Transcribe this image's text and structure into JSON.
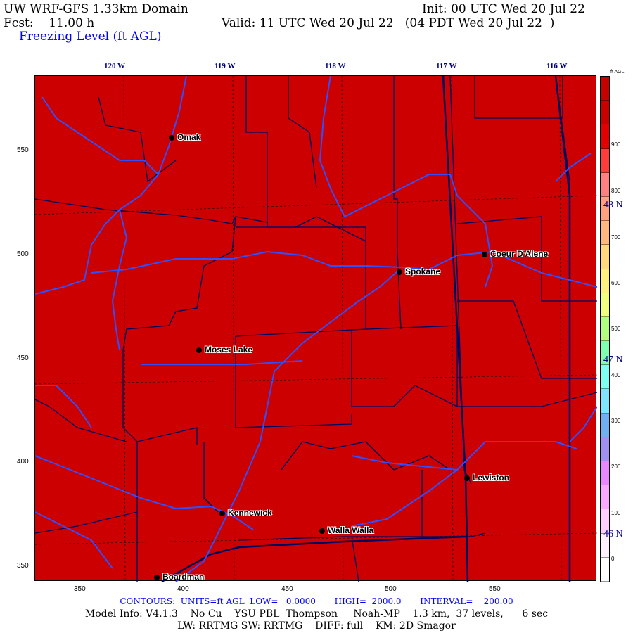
{
  "header": {
    "title": "UW WRF-GFS 1.33km Domain",
    "init": "Init: 00 UTC Wed 20 Jul 22",
    "fcst": "Fcst:    11.00 h",
    "valid": "Valid: 11 UTC Wed 20 Jul 22   (04 PDT Wed 20 Jul 22  )",
    "field": "Freezing Level (ft AGL)"
  },
  "axes": {
    "top_lon_labels": [
      "120 W",
      "119 W",
      "118 W",
      "117 W",
      "116 W"
    ],
    "left_labels": [
      "550",
      "500",
      "450",
      "400",
      "350"
    ],
    "bottom_labels": [
      "350",
      "400",
      "450",
      "500",
      "550"
    ],
    "lat_labels": [
      "48 N",
      "47 N",
      "46 N"
    ]
  },
  "cities": [
    "Omak",
    "Coeur D'Alene",
    "Spokane",
    "Moses Lake",
    "Lewiston",
    "Kennewick",
    "Walla Walla",
    "Boardman"
  ],
  "colorbar": {
    "units": "ft AGL",
    "labels": [
      "900",
      "800",
      "700",
      "600",
      "500",
      "400",
      "300",
      "200",
      "100",
      "0"
    ],
    "colors": [
      "#c40000",
      "#c80000",
      "#e40000",
      "#ff3c3c",
      "#ff8080",
      "#ffa080",
      "#ffb880",
      "#ffd880",
      "#fff080",
      "#f0ff80",
      "#b0ff80",
      "#80ffb0",
      "#80fff0",
      "#80e4ff",
      "#70b0f0",
      "#a090f0",
      "#e888ff",
      "#f8a8ff",
      "#ffd0ff",
      "#fff0ff",
      "#ffffff"
    ]
  },
  "map": {
    "fill_color": "#cc0000",
    "river_color": "#3050ff",
    "border_color": "#000060"
  },
  "footer": {
    "contours": "CONTOURS:  UNITS=ft AGL  LOW=   0.0000       HIGH=  2000.0       INTERVAL=    200.00",
    "model": "Model Info: V4.1.3    No Cu    YSU PBL  Thompson     Noah-MP    1.3 km,  37 levels,      6 sec",
    "physics": "LW: RRTMG SW: RRTMG    DIFF: full    KM: 2D Smagor"
  }
}
